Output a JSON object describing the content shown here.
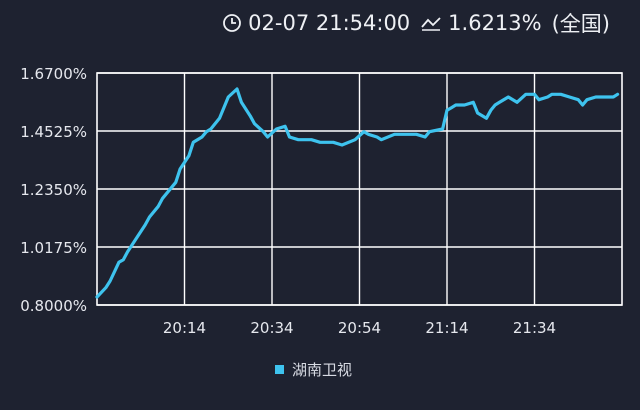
{
  "header": {
    "timestamp": "02-07 21:54:00",
    "current_value": "1.6213%",
    "scope": "(全国)",
    "clock_icon": "clock-icon",
    "trend_icon": "trend-line-icon"
  },
  "colors": {
    "background": "#1e2230",
    "series": "#3ec3ee",
    "grid": "#ffffff",
    "text": "#e6e8ee"
  },
  "chart_data": {
    "type": "line",
    "title": "",
    "xlabel": "",
    "ylabel": "",
    "ylim": [
      0.8,
      1.67
    ],
    "yticks": [
      "1.6700%",
      "1.4525%",
      "1.2350%",
      "1.0175%",
      "0.8000%"
    ],
    "ytick_values": [
      1.67,
      1.4525,
      1.235,
      1.0175,
      0.8
    ],
    "xlim_minutes": [
      1194,
      1314
    ],
    "xticks": [
      "20:14",
      "20:34",
      "20:54",
      "21:14",
      "21:34"
    ],
    "xtick_minutes": [
      1214,
      1234,
      1254,
      1274,
      1294
    ],
    "grid": true,
    "legend_position": "bottom-center",
    "series": [
      {
        "name": "湖南卫视",
        "x": [
          1194,
          1196,
          1197,
          1199,
          1200,
          1201,
          1203,
          1205,
          1206,
          1208,
          1209,
          1212,
          1213,
          1215,
          1216,
          1218,
          1219,
          1220,
          1222,
          1224,
          1226,
          1227,
          1229,
          1230,
          1232,
          1233,
          1235,
          1237,
          1238,
          1240,
          1243,
          1245,
          1248,
          1250,
          1253,
          1255,
          1256,
          1258,
          1259,
          1262,
          1265,
          1267,
          1269,
          1270,
          1273,
          1274,
          1275,
          1276,
          1278,
          1280,
          1281,
          1283,
          1284,
          1285,
          1286,
          1288,
          1290,
          1292,
          1294,
          1295,
          1297,
          1298,
          1300,
          1302,
          1304,
          1305,
          1306,
          1308,
          1310,
          1312,
          1313
        ],
        "y": [
          0.83,
          0.865,
          0.89,
          0.96,
          0.97,
          1.0,
          1.05,
          1.1,
          1.13,
          1.17,
          1.2,
          1.26,
          1.31,
          1.36,
          1.41,
          1.43,
          1.45,
          1.46,
          1.5,
          1.58,
          1.61,
          1.56,
          1.51,
          1.48,
          1.45,
          1.43,
          1.46,
          1.47,
          1.43,
          1.42,
          1.42,
          1.41,
          1.41,
          1.4,
          1.42,
          1.45,
          1.44,
          1.43,
          1.42,
          1.44,
          1.44,
          1.44,
          1.43,
          1.45,
          1.46,
          1.53,
          1.54,
          1.55,
          1.55,
          1.56,
          1.52,
          1.5,
          1.53,
          1.55,
          1.56,
          1.58,
          1.56,
          1.59,
          1.59,
          1.57,
          1.58,
          1.59,
          1.59,
          1.58,
          1.57,
          1.55,
          1.57,
          1.58,
          1.58,
          1.58,
          1.59
        ]
      }
    ]
  }
}
